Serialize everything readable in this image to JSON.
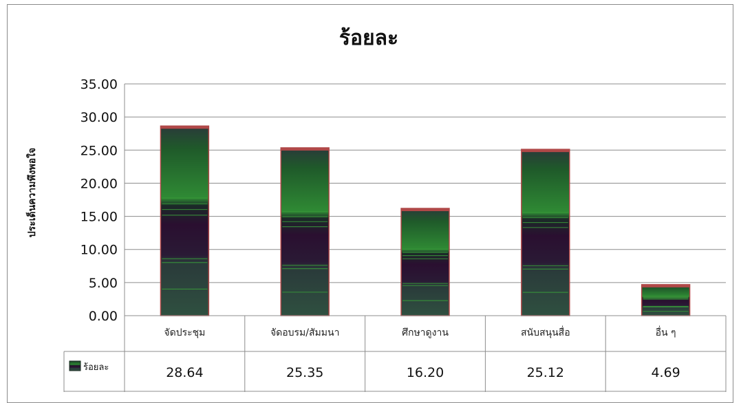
{
  "chart_data": {
    "type": "bar",
    "title": "ร้อยละ",
    "ylabel": "ประเด็นความพึงพอใจ",
    "xlabel": "",
    "categories": [
      "จัดประชุม",
      "จัดอบรม/สัมมนา",
      "ศึกษาดูงาน",
      "สนับสนุนสื่อ",
      "อื่น ๆ"
    ],
    "series": [
      {
        "name": "ร้อยละ",
        "values": [
          28.64,
          25.35,
          16.2,
          25.12,
          4.69
        ]
      }
    ],
    "value_labels": [
      "28.64",
      "25.35",
      "16.20",
      "25.12",
      "4.69"
    ],
    "ylim": [
      0,
      35
    ],
    "yticks": [
      0,
      5,
      10,
      15,
      20,
      25,
      30,
      35
    ],
    "ytick_labels": [
      "0.00",
      "5.00",
      "10.00",
      "15.00",
      "20.00",
      "25.00",
      "30.00",
      "35.00"
    ],
    "grid": true,
    "legend": "data-table",
    "colors": {
      "bar_top": "#27682f",
      "bar_mid": "#2c1a35",
      "bar_bottom": "#2f4a40",
      "accent": "#3a9a3a",
      "rim": "#b04848"
    }
  }
}
